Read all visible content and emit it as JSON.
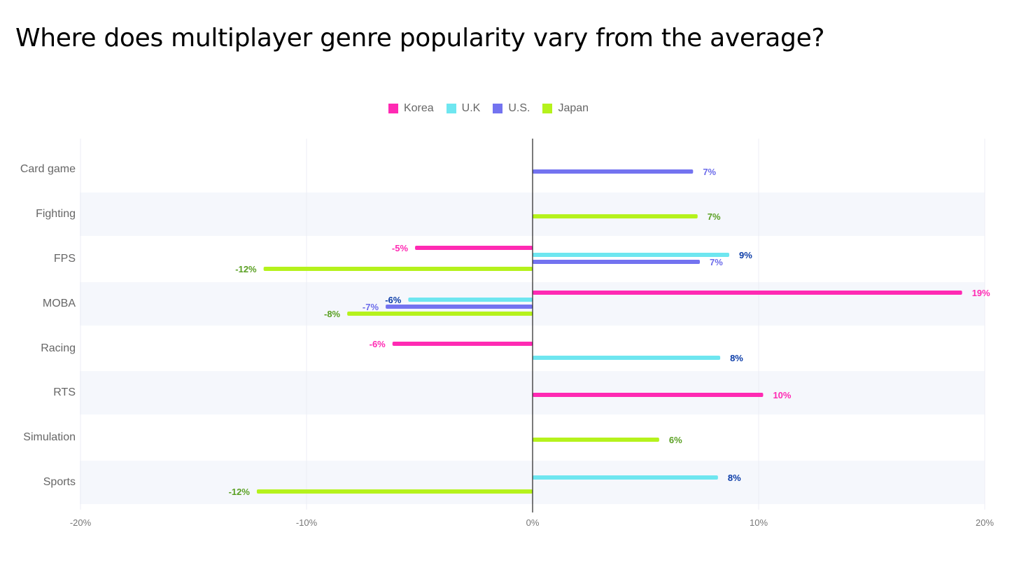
{
  "page": {
    "title": "Where does multiplayer genre popularity vary from the average?"
  },
  "chart_data": {
    "type": "bar",
    "orientation": "horizontal",
    "title": "Where does multiplayer genre popularity vary from the average?",
    "xlabel": "",
    "ylabel": "",
    "xlim": [
      -20,
      20
    ],
    "x_ticks": [
      -20,
      -10,
      0,
      10,
      20
    ],
    "x_tick_labels": [
      "-20%",
      "-10%",
      "0%",
      "10%",
      "20%"
    ],
    "categories": [
      "Card game",
      "Fighting",
      "FPS",
      "MOBA",
      "Racing",
      "RTS",
      "Simulation",
      "Sports"
    ],
    "legend_position": "top-center",
    "grid": true,
    "series": [
      {
        "name": "Korea",
        "color": "#ff2ab3",
        "label_color": "#ff2ab3",
        "values": [
          null,
          null,
          -5.2,
          19,
          -6.2,
          10.2,
          null,
          null
        ],
        "labels": [
          null,
          null,
          "-5%",
          "19%",
          "-6%",
          "10%",
          null,
          null
        ]
      },
      {
        "name": "U.K",
        "color": "#6ee6f0",
        "label_color": "#0b3ca8",
        "values": [
          null,
          null,
          8.7,
          -5.5,
          8.3,
          null,
          null,
          8.2
        ],
        "labels": [
          null,
          null,
          "9%",
          "-6%",
          "8%",
          null,
          null,
          "8%"
        ]
      },
      {
        "name": "U.S.",
        "color": "#7373f0",
        "label_color": "#6b6bea",
        "values": [
          7.1,
          null,
          7.4,
          -6.5,
          null,
          null,
          null,
          null
        ],
        "labels": [
          "7%",
          null,
          "7%",
          "-7%",
          null,
          null,
          null,
          null
        ]
      },
      {
        "name": "Japan",
        "color": "#b5f21c",
        "label_color": "#5aa023",
        "values": [
          null,
          7.3,
          -11.9,
          -8.2,
          null,
          null,
          5.6,
          -12.2
        ],
        "labels": [
          null,
          "7%",
          "-12%",
          "-8%",
          null,
          null,
          "6%",
          "-12%"
        ]
      }
    ]
  }
}
